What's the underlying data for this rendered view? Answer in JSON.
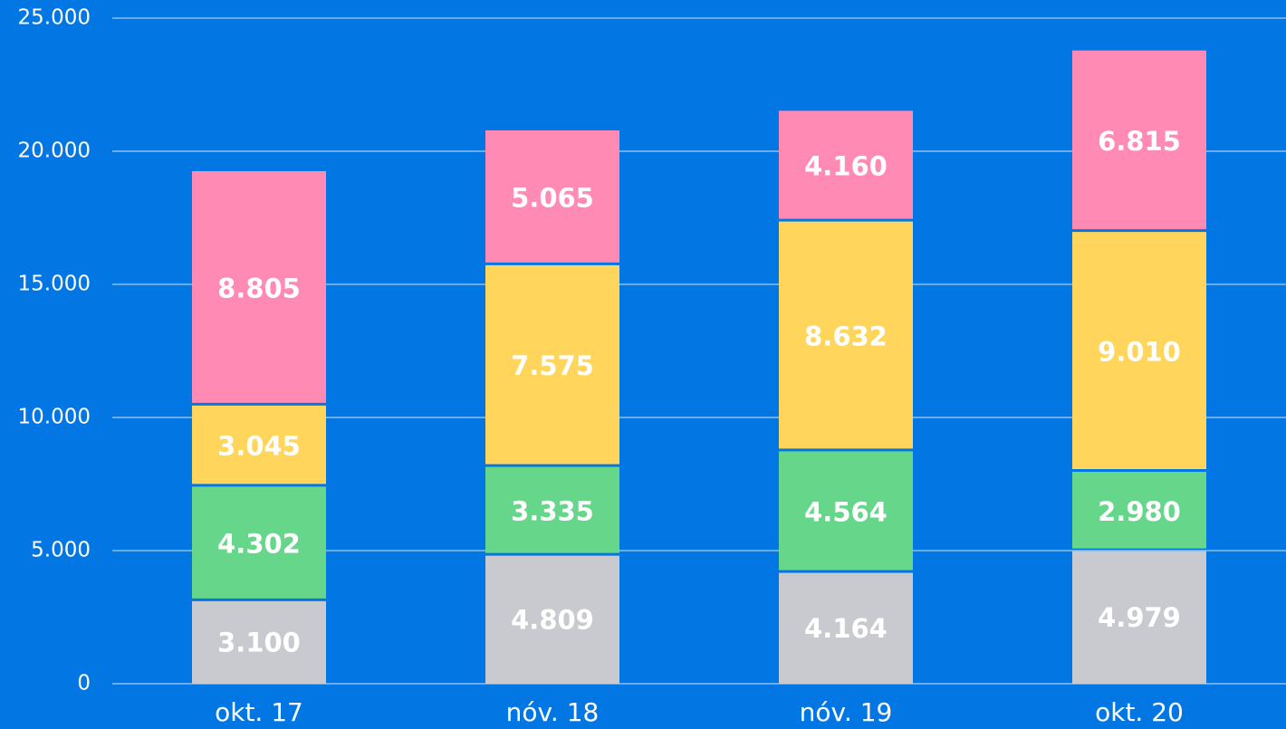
{
  "chart_data": {
    "type": "stacked_bar",
    "categories": [
      "okt. 17",
      "nóv. 18",
      "nóv. 19",
      "okt. 20"
    ],
    "series": [
      {
        "color": "#c8cacf",
        "values": [
          3100,
          4809,
          4164,
          4979
        ],
        "value_labels": [
          "3.100",
          "4.809",
          "4.164",
          "4.979"
        ]
      },
      {
        "color": "#66d68b",
        "values": [
          4302,
          3335,
          4564,
          2980
        ],
        "value_labels": [
          "4.302",
          "3.335",
          "4.564",
          "2.980"
        ]
      },
      {
        "color": "#ffd55c",
        "values": [
          3045,
          7575,
          8632,
          9010
        ],
        "value_labels": [
          "3.045",
          "7.575",
          "8.632",
          "9.010"
        ]
      },
      {
        "color": "#ff8ab3",
        "values": [
          8805,
          5065,
          4160,
          6815
        ],
        "value_labels": [
          "8.805",
          "5.065",
          "4.160",
          "6.815"
        ]
      }
    ],
    "ylim": [
      0,
      25000
    ],
    "yticks": [
      0,
      {
        "value": 5000,
        "label": "5.000"
      },
      {
        "value": 10000,
        "label": "10.000"
      },
      {
        "value": 15000,
        "label": "15.000"
      },
      {
        "value": 20000,
        "label": "20.000"
      },
      {
        "value": 25000,
        "label": "25.000"
      }
    ],
    "grid": true,
    "background": "#0277e4"
  }
}
